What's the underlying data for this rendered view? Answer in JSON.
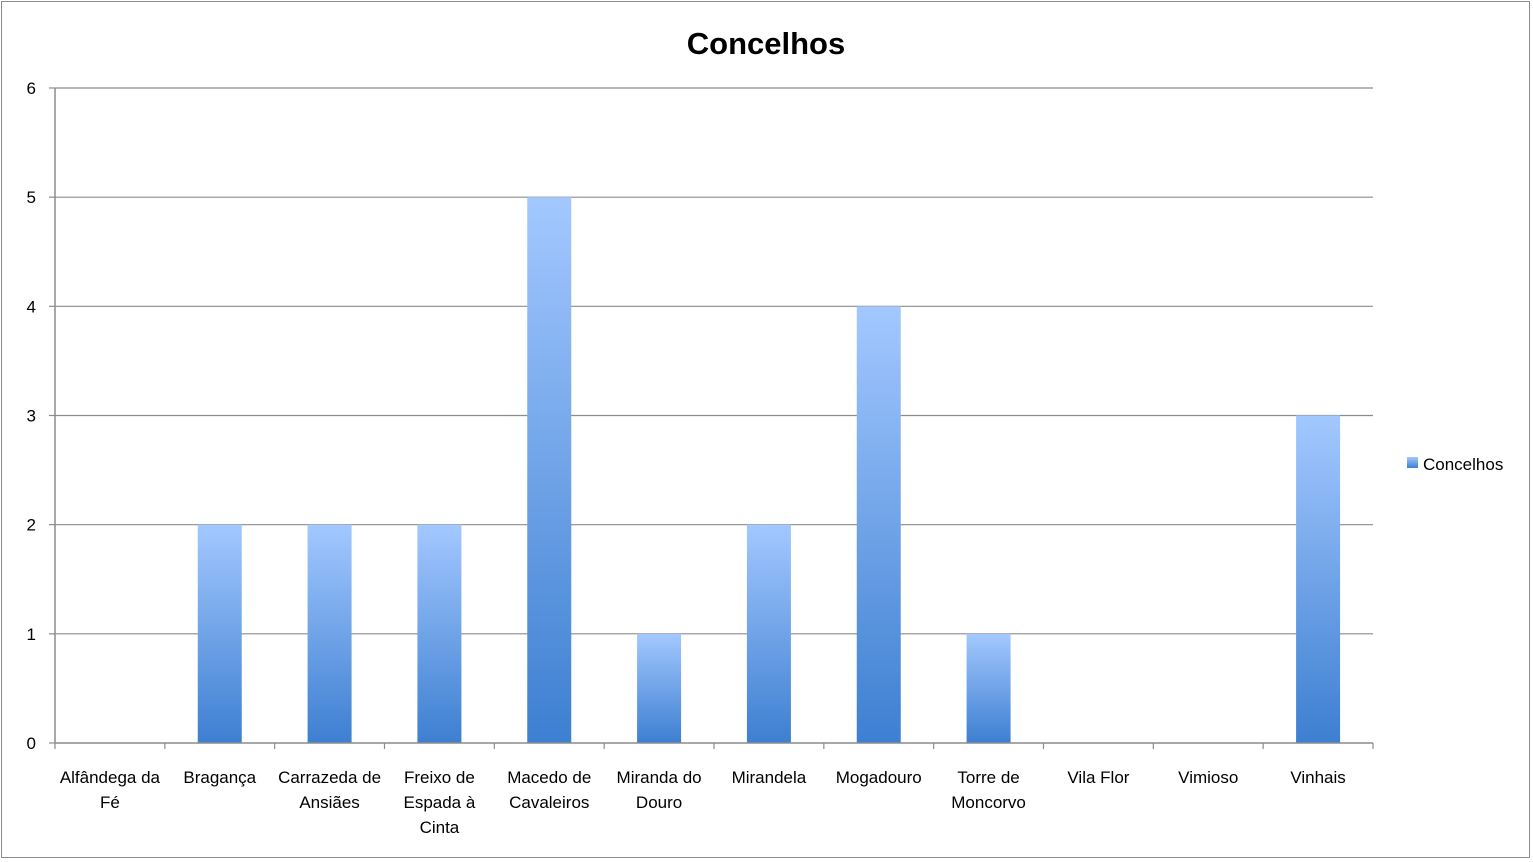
{
  "chart_data": {
    "type": "bar",
    "title": "Concelhos",
    "xlabel": "",
    "ylabel": "",
    "categories": [
      "Alfândega da Fé",
      "Bragança",
      "Carrazeda de Ansiães",
      "Freixo de Espada à Cinta",
      "Macedo de Cavaleiros",
      "Miranda do Douro",
      "Mirandela",
      "Mogadouro",
      "Torre de Moncorvo",
      "Vila Flor",
      "Vimioso",
      "Vinhais"
    ],
    "category_label_lines": [
      [
        "Alfândega da",
        "Fé"
      ],
      [
        "Bragança"
      ],
      [
        "Carrazeda de",
        "Ansiães"
      ],
      [
        "Freixo de",
        "Espada à",
        "Cinta"
      ],
      [
        "Macedo de",
        "Cavaleiros"
      ],
      [
        "Miranda do",
        "Douro"
      ],
      [
        "Mirandela"
      ],
      [
        "Mogadouro"
      ],
      [
        "Torre de",
        "Moncorvo"
      ],
      [
        "Vila Flor"
      ],
      [
        "Vimioso"
      ],
      [
        "Vinhais"
      ]
    ],
    "series": [
      {
        "name": "Concelhos",
        "values": [
          0,
          2,
          2,
          2,
          5,
          1,
          2,
          4,
          1,
          0,
          0,
          3
        ]
      }
    ],
    "ylim": [
      0,
      6
    ],
    "yticks": [
      0,
      1,
      2,
      3,
      4,
      5,
      6
    ],
    "grid": true,
    "legend_position": "right",
    "colors": {
      "bar_top": "#a3c8ff",
      "bar_bottom": "#3d7fd1",
      "grid": "#8c8c8c",
      "axis": "#8c8c8c"
    }
  }
}
